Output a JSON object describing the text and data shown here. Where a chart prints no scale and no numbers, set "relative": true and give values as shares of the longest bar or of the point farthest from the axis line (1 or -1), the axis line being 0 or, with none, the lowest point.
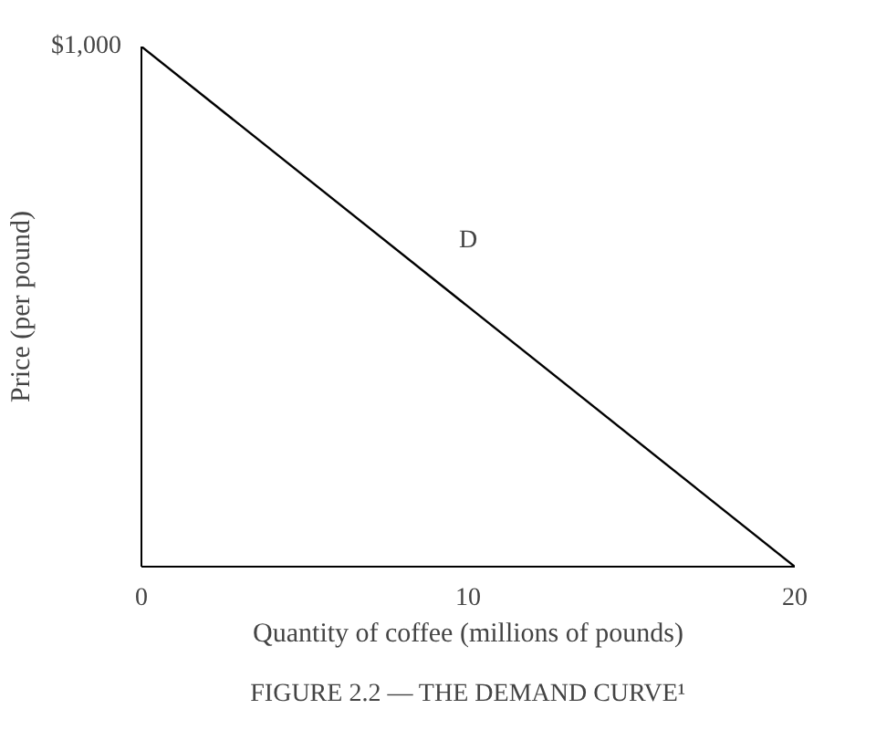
{
  "chart_data": {
    "type": "line",
    "relative": true,
    "xlabel": "Quantity of coffee (millions of pounds)",
    "ylabel": "Price (per pound)",
    "x": [
      0,
      20
    ],
    "series": [
      {
        "color": "#000000",
        "values": [
          1,
          0
        ]
      }
    ],
    "xlim": [
      0,
      20
    ],
    "xticks": [
      0,
      10,
      20
    ],
    "annotations": [
      "$1,000",
      "D",
      "FIGURE 2.2 — THE DEMAND CURVE¹"
    ],
    "grid": false,
    "marker": "none",
    "line_style": "solid"
  }
}
